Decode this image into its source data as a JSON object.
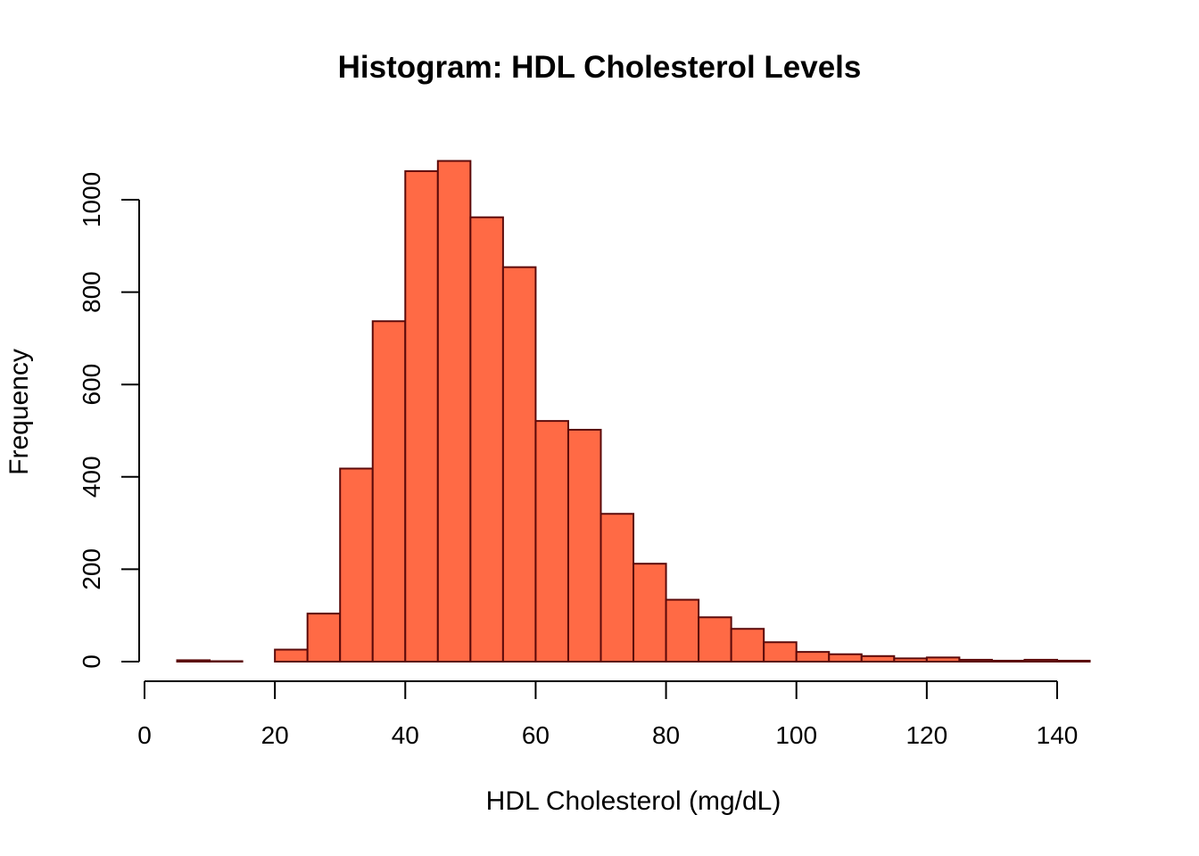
{
  "chart_data": {
    "type": "bar",
    "title": "Histogram: HDL Cholesterol Levels",
    "xlabel": "HDL Cholesterol (mg/dL)",
    "ylabel": "Frequency",
    "bin_width": 5,
    "bins": [
      {
        "start": 5,
        "end": 10,
        "value": 3
      },
      {
        "start": 10,
        "end": 15,
        "value": 1
      },
      {
        "start": 15,
        "end": 20,
        "value": 0
      },
      {
        "start": 20,
        "end": 25,
        "value": 26
      },
      {
        "start": 25,
        "end": 30,
        "value": 104
      },
      {
        "start": 30,
        "end": 35,
        "value": 418
      },
      {
        "start": 35,
        "end": 40,
        "value": 737
      },
      {
        "start": 40,
        "end": 45,
        "value": 1062
      },
      {
        "start": 45,
        "end": 50,
        "value": 1084
      },
      {
        "start": 50,
        "end": 55,
        "value": 962
      },
      {
        "start": 55,
        "end": 60,
        "value": 854
      },
      {
        "start": 60,
        "end": 65,
        "value": 521
      },
      {
        "start": 65,
        "end": 70,
        "value": 502
      },
      {
        "start": 70,
        "end": 75,
        "value": 320
      },
      {
        "start": 75,
        "end": 80,
        "value": 212
      },
      {
        "start": 80,
        "end": 85,
        "value": 134
      },
      {
        "start": 85,
        "end": 90,
        "value": 96
      },
      {
        "start": 90,
        "end": 95,
        "value": 71
      },
      {
        "start": 95,
        "end": 100,
        "value": 42
      },
      {
        "start": 100,
        "end": 105,
        "value": 21
      },
      {
        "start": 105,
        "end": 110,
        "value": 16
      },
      {
        "start": 110,
        "end": 115,
        "value": 12
      },
      {
        "start": 115,
        "end": 120,
        "value": 7
      },
      {
        "start": 120,
        "end": 125,
        "value": 9
      },
      {
        "start": 125,
        "end": 130,
        "value": 4
      },
      {
        "start": 130,
        "end": 135,
        "value": 2
      },
      {
        "start": 135,
        "end": 140,
        "value": 4
      },
      {
        "start": 140,
        "end": 145,
        "value": 2
      }
    ],
    "x_ticks": [
      0,
      20,
      40,
      60,
      80,
      100,
      120,
      140
    ],
    "y_ticks": [
      0,
      200,
      400,
      600,
      800,
      1000
    ],
    "xlim": [
      0,
      140
    ],
    "ylim": [
      0,
      1000
    ],
    "grid": false,
    "colors": {
      "bar_fill": "#FF6A45",
      "bar_border": "#5C0A0A"
    }
  }
}
